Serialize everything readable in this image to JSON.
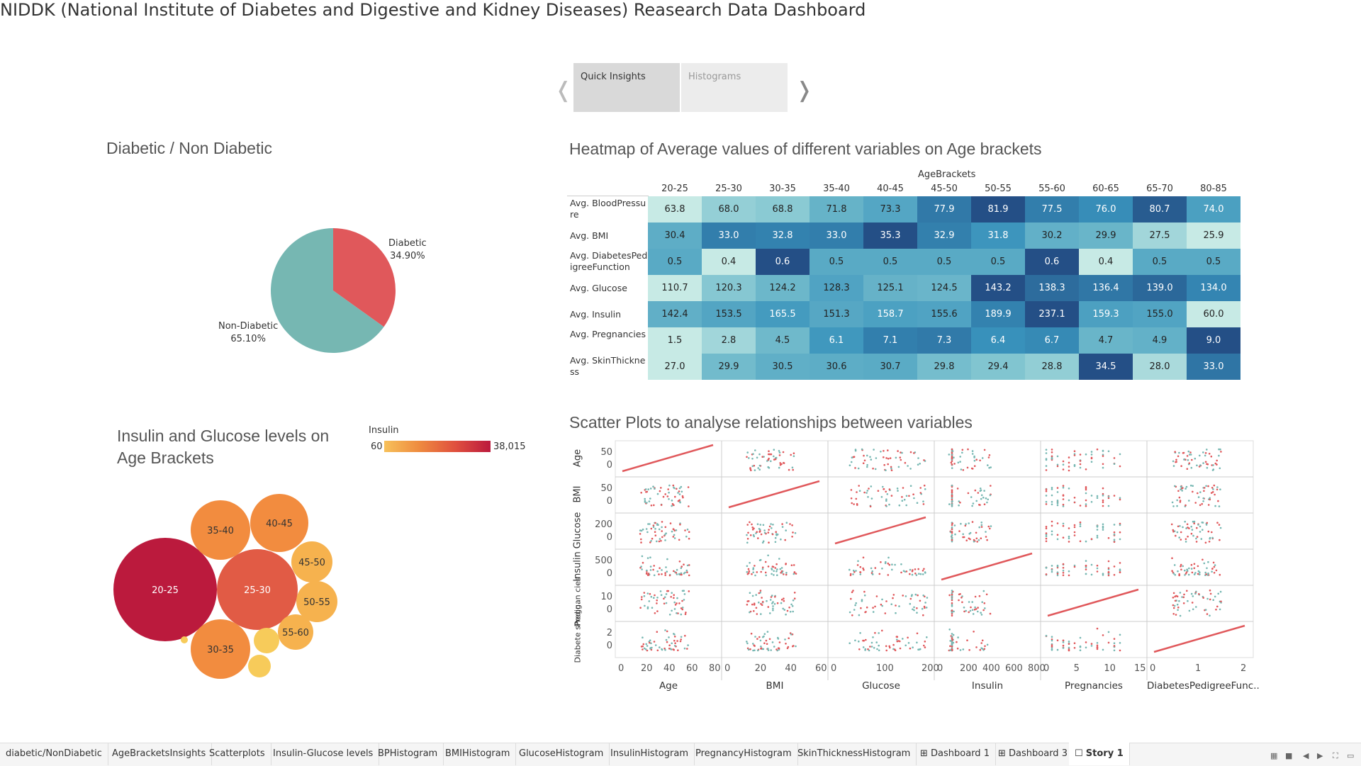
{
  "story": {
    "title": "NIDDK (National Institute of Diabetes and Digestive and Kidney Diseases) Reasearch Data Dashboard",
    "points": [
      "Quick Insights",
      "Histograms"
    ],
    "prev_icon": "chevron-left-icon",
    "next_icon": "chevron-right-icon"
  },
  "pie": {
    "title": "Diabetic / Non Diabetic",
    "slices": [
      {
        "label": "Diabetic",
        "pct_label": "34.90%",
        "value": 34.9,
        "color": "#e0585b"
      },
      {
        "label": "Non-Diabetic",
        "pct_label": "65.10%",
        "value": 65.1,
        "color": "#76b7b2"
      }
    ]
  },
  "heatmap": {
    "title": "Heatmap of Average values of different variables on Age brackets",
    "col_header": "AgeBrackets",
    "cols": [
      "20-25",
      "25-30",
      "30-35",
      "35-40",
      "40-45",
      "45-50",
      "50-55",
      "55-60",
      "60-65",
      "65-70",
      "80-85"
    ],
    "rows": [
      "Avg. BloodPressure",
      "Avg. BMI",
      "Avg. DiabetesPedigreeFunction",
      "Avg. Glucose",
      "Avg. Insulin",
      "Avg. Pregnancies",
      "Avg. SkinThickness"
    ],
    "values": [
      [
        "63.8",
        "68.0",
        "68.8",
        "71.8",
        "73.3",
        "77.9",
        "81.9",
        "77.5",
        "76.0",
        "80.7",
        "74.0"
      ],
      [
        "30.4",
        "33.0",
        "32.8",
        "33.0",
        "35.3",
        "32.9",
        "31.8",
        "30.2",
        "29.9",
        "27.5",
        "25.9"
      ],
      [
        "0.5",
        "0.4",
        "0.6",
        "0.5",
        "0.5",
        "0.5",
        "0.5",
        "0.6",
        "0.4",
        "0.5",
        "0.5"
      ],
      [
        "110.7",
        "120.3",
        "124.2",
        "128.3",
        "125.1",
        "124.5",
        "143.2",
        "138.3",
        "136.4",
        "139.0",
        "134.0"
      ],
      [
        "142.4",
        "153.5",
        "165.5",
        "151.3",
        "158.7",
        "155.6",
        "189.9",
        "237.1",
        "159.3",
        "155.0",
        "60.0"
      ],
      [
        "1.5",
        "2.8",
        "4.5",
        "6.1",
        "7.1",
        "7.3",
        "6.4",
        "6.7",
        "4.7",
        "4.9",
        "9.0"
      ],
      [
        "27.0",
        "29.9",
        "30.5",
        "30.6",
        "30.7",
        "29.8",
        "29.4",
        "28.8",
        "34.5",
        "28.0",
        "33.0"
      ]
    ]
  },
  "bubbles": {
    "title": "Insulin and Glucose levels on Age Brackets",
    "legend_title": "Insulin",
    "legend_min": "60",
    "legend_max": "38,015",
    "labels": [
      "20-25",
      "25-30",
      "35-40",
      "40-45",
      "45-50",
      "50-55",
      "55-60",
      "30-35"
    ]
  },
  "scatter": {
    "title": "Scatter Plots to analyse relationships between variables",
    "vars": [
      "Age",
      "BMI",
      "Glucose",
      "Insulin",
      "Pregnancies",
      "DiabetesPedigreeFunc.."
    ],
    "row_labels": [
      "Age",
      "BMI",
      "Glucose",
      "Insulin",
      "Pregnan cies",
      "Diabete sPedig.."
    ],
    "y_ticks": [
      [
        "50",
        "0"
      ],
      [
        "50",
        "0"
      ],
      [
        "200",
        "0"
      ],
      [
        "500",
        "0"
      ],
      [
        "10",
        "0"
      ],
      [
        "2",
        "0"
      ]
    ],
    "x_ticks": [
      [
        "0",
        "20",
        "40",
        "60",
        "80"
      ],
      [
        "0",
        "20",
        "40",
        "60"
      ],
      [
        "0",
        "100",
        "200"
      ],
      [
        "0",
        "200",
        "400",
        "600",
        "800"
      ],
      [
        "0",
        "5",
        "10",
        "15"
      ],
      [
        "0",
        "1",
        "2"
      ]
    ],
    "colors": {
      "diabetic": "#e0585b",
      "non_diabetic": "#76b7b2"
    }
  },
  "tabs": [
    "diabetic/NonDiabetic",
    "AgeBracketsInsights",
    "Scatterplots",
    "Insulin-Glucose levels",
    "BPHistogram",
    "BMIHistogram",
    "GlucoseHistogram",
    "InsulinHistogram",
    "PregnancyHistogram",
    "SkinThicknessHistogram",
    "Dashboard 1",
    "Dashboard 3",
    "Story 1"
  ],
  "tab_icons": {
    "dashboard": "dashboard-grid-icon",
    "story": "story-book-icon"
  }
}
